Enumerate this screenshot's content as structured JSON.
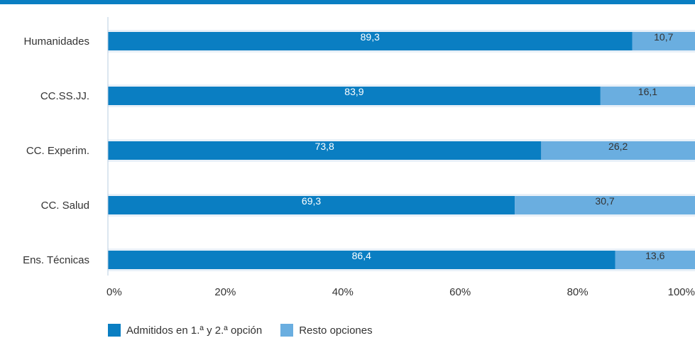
{
  "colors": {
    "series1": "#0a7ec2",
    "series2": "#6aaee0",
    "rule": "#0a7ec2",
    "bg_band": "#e8f0f8",
    "axis": "#b8cce0"
  },
  "chart_data": {
    "type": "bar",
    "orientation": "horizontal",
    "stacked": true,
    "categories": [
      "Humanidades",
      "CC.SS.JJ.",
      "CC. Experim.",
      "CC. Salud",
      "Ens. Técnicas"
    ],
    "series": [
      {
        "name": "Admitidos en 1.ª y 2.ª opción",
        "values": [
          89.3,
          83.9,
          73.8,
          69.3,
          86.4
        ],
        "labels": [
          "89,3",
          "83,9",
          "73,8",
          "69,3",
          "86,4"
        ]
      },
      {
        "name": "Resto opciones",
        "values": [
          10.7,
          16.1,
          26.2,
          30.7,
          13.6
        ],
        "labels": [
          "10,7",
          "16,1",
          "26,2",
          "30,7",
          "13,6"
        ]
      }
    ],
    "xlim": [
      0,
      100
    ],
    "x_ticks": [
      "0%",
      "20%",
      "40%",
      "60%",
      "80%",
      "100%"
    ],
    "legend_position": "bottom-left",
    "grid": false
  }
}
